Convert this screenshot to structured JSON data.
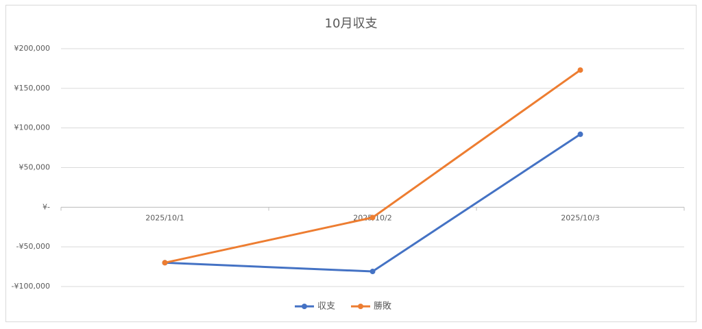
{
  "chart_data": {
    "type": "line",
    "title": "10月収支",
    "categories": [
      "2025/10/1",
      "2025/10/2",
      "2025/10/3"
    ],
    "series": [
      {
        "name": "収支",
        "color": "#4472c4",
        "values": [
          -70000,
          -81000,
          92000
        ]
      },
      {
        "name": "勝敗",
        "color": "#ed7d31",
        "values": [
          -70000,
          -13000,
          173000
        ]
      }
    ],
    "ylim": [
      -100000,
      200000
    ],
    "yticks": [
      {
        "value": -100000,
        "label": "-¥100,000"
      },
      {
        "value": -50000,
        "label": "-¥50,000"
      },
      {
        "value": 0,
        "label": "¥-"
      },
      {
        "value": 50000,
        "label": "¥50,000"
      },
      {
        "value": 100000,
        "label": "¥100,000"
      },
      {
        "value": 150000,
        "label": "¥150,000"
      },
      {
        "value": 200000,
        "label": "¥200,000"
      }
    ],
    "grid": true,
    "legend": "bottom"
  }
}
